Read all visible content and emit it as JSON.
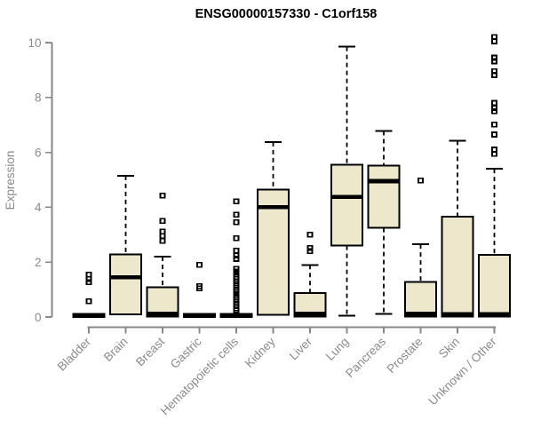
{
  "chart_data": {
    "type": "boxplot",
    "title": "ENSG00000157330 - C1orf158",
    "xlabel": "",
    "ylabel": "Expression",
    "ylim": [
      0,
      10
    ],
    "yticks": [
      0,
      2,
      4,
      6,
      8,
      10
    ],
    "grid": false,
    "legend": false,
    "categories": [
      "Bladder",
      "Brain",
      "Breast",
      "Gastric",
      "Hematopoietic cells",
      "Kidney",
      "Liver",
      "Lung",
      "Pancreas",
      "Prostate",
      "Skin",
      "Unknown / Other"
    ],
    "boxes": [
      {
        "category": "Bladder",
        "q1": 0,
        "median": 0.05,
        "q3": 0.12,
        "whisker_low": 0,
        "whisker_high": 0.12,
        "outliers": [
          0.58,
          1.27,
          1.38,
          1.55
        ]
      },
      {
        "category": "Brain",
        "q1": 0.1,
        "median": 1.45,
        "q3": 2.28,
        "whisker_low": 0.1,
        "whisker_high": 5.15,
        "outliers": []
      },
      {
        "category": "Breast",
        "q1": 0.02,
        "median": 0.12,
        "q3": 1.09,
        "whisker_low": 0.02,
        "whisker_high": 2.2,
        "outliers": [
          2.78,
          2.95,
          3.12,
          3.5,
          4.43
        ]
      },
      {
        "category": "Gastric",
        "q1": 0,
        "median": 0.05,
        "q3": 0.12,
        "whisker_low": 0,
        "whisker_high": 0.12,
        "outliers": [
          1.05,
          1.12,
          1.9
        ]
      },
      {
        "category": "Hematopoietic cells",
        "q1": 0,
        "median": 0.05,
        "q3": 0.12,
        "whisker_low": 0,
        "whisker_high": 0.12,
        "outliers": [
          0.25,
          0.32,
          0.4,
          0.48,
          0.55,
          0.62,
          0.7,
          0.78,
          0.85,
          0.92,
          1.0,
          1.08,
          1.15,
          1.22,
          1.3,
          1.38,
          1.45,
          1.55,
          1.65,
          1.75,
          2.12,
          2.25,
          2.42,
          2.87,
          3.45,
          3.73,
          4.22
        ]
      },
      {
        "category": "Kidney",
        "q1": 0.08,
        "median": 4.0,
        "q3": 4.65,
        "whisker_low": 0.08,
        "whisker_high": 6.38,
        "outliers": []
      },
      {
        "category": "Liver",
        "q1": 0.02,
        "median": 0.12,
        "q3": 0.87,
        "whisker_low": 0.02,
        "whisker_high": 1.9,
        "outliers": [
          2.4,
          2.52,
          3.0
        ]
      },
      {
        "category": "Lung",
        "q1": 2.6,
        "median": 4.38,
        "q3": 5.55,
        "whisker_low": 0.05,
        "whisker_high": 9.85,
        "outliers": []
      },
      {
        "category": "Pancreas",
        "q1": 3.25,
        "median": 4.95,
        "q3": 5.52,
        "whisker_low": 0.12,
        "whisker_high": 6.78,
        "outliers": []
      },
      {
        "category": "Prostate",
        "q1": 0.02,
        "median": 0.12,
        "q3": 1.28,
        "whisker_low": 0.02,
        "whisker_high": 2.65,
        "outliers": [
          4.97
        ]
      },
      {
        "category": "Skin",
        "q1": 0.02,
        "median": 0.1,
        "q3": 3.66,
        "whisker_low": 0.02,
        "whisker_high": 6.43,
        "outliers": []
      },
      {
        "category": "Unknown / Other",
        "q1": 0.02,
        "median": 0.1,
        "q3": 2.27,
        "whisker_low": 0.02,
        "whisker_high": 5.4,
        "outliers": [
          5.95,
          6.1,
          6.65,
          7.02,
          7.5,
          7.62,
          7.8,
          8.82,
          8.95,
          9.32,
          9.45,
          10.05,
          10.2
        ]
      }
    ],
    "colors": {
      "box_fill": "#EDE8CC",
      "box_border": "#000000",
      "median": "#000000",
      "whisker": "#000000",
      "outlier": "#000000",
      "axis": "#888888",
      "tick_label": "#8a8a8a",
      "title": "#000000",
      "background": "#ffffff"
    }
  }
}
